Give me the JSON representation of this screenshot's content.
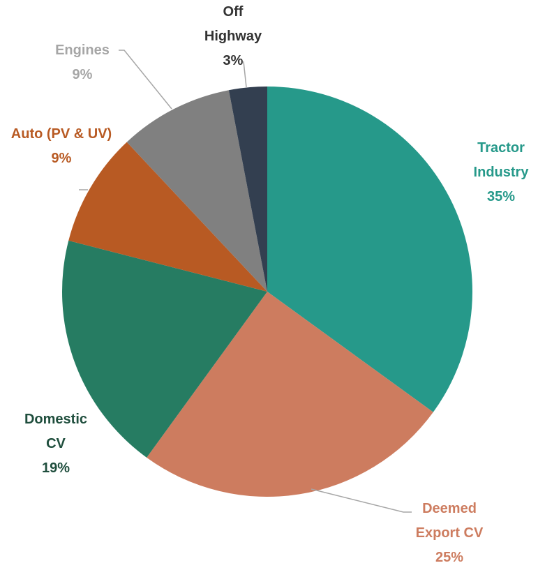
{
  "chart_data": {
    "type": "pie",
    "categories": [
      "Tractor Industry",
      "Deemed Export CV",
      "Domestic CV",
      "Auto (PV & UV)",
      "Engines",
      "Off Highway"
    ],
    "values": [
      35,
      25,
      19,
      9,
      9,
      3
    ],
    "value_labels": [
      "35%",
      "25%",
      "19%",
      "9%",
      "9%",
      "3%"
    ],
    "colors": [
      "#26998a",
      "#cd7c5f",
      "#267c62",
      "#b85a23",
      "#808080",
      "#333f50"
    ]
  }
}
